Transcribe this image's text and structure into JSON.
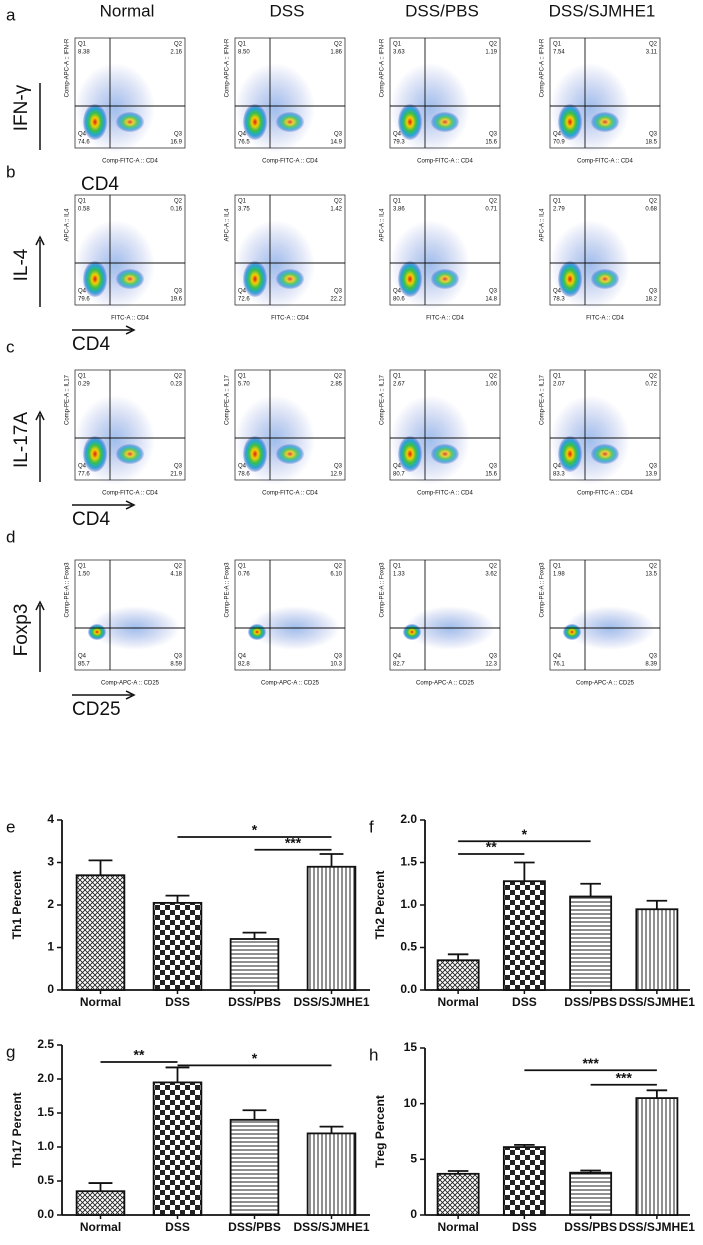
{
  "column_headers": [
    "Normal",
    "DSS",
    "DSS/PBS",
    "DSS/SJMHE1"
  ],
  "quadrant_names": [
    "Q1",
    "Q2",
    "Q3",
    "Q4"
  ],
  "flow_panels": [
    {
      "panel": "a",
      "y_marker": "IFN-γ",
      "x_marker": "CD4",
      "y_axis": "Comp-APC-A :: IFN-R",
      "x_axis": "Comp-FITC-A :: CD4",
      "quadrants": [
        [
          "8.38",
          "2.16",
          "16.9",
          "74.6"
        ],
        [
          "8.50",
          "1.86",
          "14.9",
          "76.5"
        ],
        [
          "3.63",
          "1.19",
          "15.6",
          "79.3"
        ],
        [
          "7.54",
          "3.11",
          "18.5",
          "70.9"
        ]
      ]
    },
    {
      "panel": "b",
      "y_marker": "IL-4",
      "x_marker": "CD4",
      "y_axis": "APC-A :: IL4",
      "x_axis": "FITC-A :: CD4",
      "quadrants": [
        [
          "0.58",
          "0.16",
          "19.6",
          "79.6"
        ],
        [
          "3.75",
          "1.42",
          "22.2",
          "72.6"
        ],
        [
          "3.86",
          "0.71",
          "14.8",
          "80.6"
        ],
        [
          "2.79",
          "0.68",
          "18.2",
          "78.3"
        ]
      ]
    },
    {
      "panel": "c",
      "y_marker": "IL-17A",
      "x_marker": "CD4",
      "y_axis": "Comp-PE-A :: IL17",
      "x_axis": "Comp-FITC-A :: CD4",
      "quadrants": [
        [
          "0.29",
          "0.23",
          "21.9",
          "77.6"
        ],
        [
          "5.70",
          "2.85",
          "12.9",
          "78.6"
        ],
        [
          "2.67",
          "1.00",
          "15.6",
          "80.7"
        ],
        [
          "2.07",
          "0.72",
          "13.9",
          "83.3"
        ]
      ]
    },
    {
      "panel": "d",
      "y_marker": "Foxp3",
      "x_marker": "CD25",
      "y_axis": "Comp-PE-A :: Foxp3",
      "x_axis": "Comp-APC-A :: CD25",
      "quadrants": [
        [
          "1.50",
          "4.18",
          "8.59",
          "85.7"
        ],
        [
          "0.76",
          "6.10",
          "10.3",
          "82.8"
        ],
        [
          "1.33",
          "3.62",
          "12.3",
          "82.7"
        ],
        [
          "1.98",
          "13.5",
          "8.39",
          "76.1"
        ]
      ]
    }
  ],
  "chart_data": [
    {
      "type": "bar",
      "panel": "e",
      "ylabel": "Th1 Percent",
      "categories": [
        "Normal",
        "DSS",
        "DSS/PBS",
        "DSS/SJMHE1"
      ],
      "values": [
        2.7,
        2.05,
        1.2,
        2.9
      ],
      "errors": [
        0.35,
        0.17,
        0.15,
        0.3
      ],
      "patterns": [
        "crosshatch",
        "checker",
        "hlines",
        "vlines"
      ],
      "ylim": [
        0,
        4
      ],
      "yticks": [
        0,
        1,
        2,
        3,
        4
      ],
      "annotations": [
        {
          "label": "*",
          "from": 1,
          "to": 3,
          "y": 3.6
        },
        {
          "label": "***",
          "from": 2,
          "to": 3,
          "y": 3.3
        }
      ]
    },
    {
      "type": "bar",
      "panel": "f",
      "ylabel": "Th2 Percent",
      "categories": [
        "Normal",
        "DSS",
        "DSS/PBS",
        "DSS/SJMHE1"
      ],
      "values": [
        0.35,
        1.28,
        1.1,
        0.95
      ],
      "errors": [
        0.07,
        0.22,
        0.15,
        0.1
      ],
      "patterns": [
        "crosshatch",
        "checker",
        "hlines",
        "vlines"
      ],
      "ylim": [
        0,
        2
      ],
      "yticks": [
        {
          "value": 0,
          "label": "0.0"
        },
        0.5,
        {
          "value": 1,
          "label": "1.0"
        },
        1.5,
        {
          "value": 2,
          "label": "2.0"
        }
      ],
      "annotations": [
        {
          "label": "*",
          "from": 0,
          "to": 2,
          "y": 1.75
        },
        {
          "label": "**",
          "from": 0,
          "to": 1,
          "y": 1.6
        }
      ]
    },
    {
      "type": "bar",
      "panel": "g",
      "ylabel": "Th17 Percent",
      "categories": [
        "Normal",
        "DSS",
        "DSS/PBS",
        "DSS/SJMHE1"
      ],
      "values": [
        0.35,
        1.95,
        1.4,
        1.2
      ],
      "errors": [
        0.12,
        0.22,
        0.14,
        0.1
      ],
      "patterns": [
        "crosshatch",
        "checker",
        "hlines",
        "vlines"
      ],
      "ylim": [
        0,
        2.5
      ],
      "yticks": [
        {
          "value": 0,
          "label": "0.0"
        },
        0.5,
        {
          "value": 1,
          "label": "1.0"
        },
        1.5,
        {
          "value": 2,
          "label": "2.0"
        },
        2.5
      ],
      "annotations": [
        {
          "label": "**",
          "from": 0,
          "to": 1,
          "y": 2.25
        },
        {
          "label": "*",
          "from": 1,
          "to": 3,
          "y": 2.2
        }
      ]
    },
    {
      "type": "bar",
      "panel": "h",
      "ylabel": "Treg Percent",
      "categories": [
        "Normal",
        "DSS",
        "DSS/PBS",
        "DSS/SJMHE1"
      ],
      "values": [
        3.7,
        6.1,
        3.8,
        10.5
      ],
      "errors": [
        0.25,
        0.2,
        0.2,
        0.7
      ],
      "patterns": [
        "crosshatch",
        "checker",
        "hlines",
        "vlines"
      ],
      "ylim": [
        0,
        15
      ],
      "yticks": [
        0,
        5,
        10,
        15
      ],
      "annotations": [
        {
          "label": "***",
          "from": 1,
          "to": 3,
          "y": 13
        },
        {
          "label": "***",
          "from": 2,
          "to": 3,
          "y": 11.7
        }
      ]
    }
  ]
}
